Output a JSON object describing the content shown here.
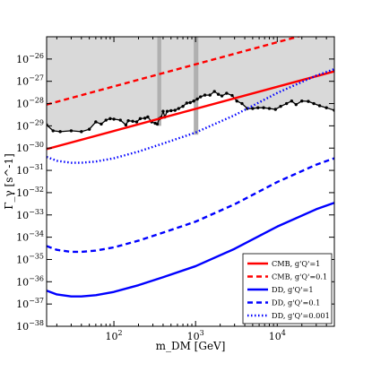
{
  "chart_data": {
    "type": "line",
    "title": "",
    "xlabel": "m_DM [GeV]",
    "ylabel": "Γ_γ [s^-1]",
    "x_scale": "log",
    "y_scale": "log",
    "xlim": [
      15,
      50000
    ],
    "ylim": [
      1e-38,
      1e-25
    ],
    "x_ticks": [
      {
        "value": 100,
        "base": "10",
        "exp": "2"
      },
      {
        "value": 1000,
        "base": "10",
        "exp": "3"
      },
      {
        "value": 10000,
        "base": "10",
        "exp": "4"
      }
    ],
    "y_ticks": [
      {
        "value": 1e-26,
        "base": "10",
        "exp": "−26"
      },
      {
        "value": 1e-27,
        "base": "10",
        "exp": "−27"
      },
      {
        "value": 1e-28,
        "base": "10",
        "exp": "−28"
      },
      {
        "value": 1e-29,
        "base": "10",
        "exp": "−29"
      },
      {
        "value": 1e-30,
        "base": "10",
        "exp": "−30"
      },
      {
        "value": 1e-31,
        "base": "10",
        "exp": "−31"
      },
      {
        "value": 1e-32,
        "base": "10",
        "exp": "−32"
      },
      {
        "value": 1e-33,
        "base": "10",
        "exp": "−33"
      },
      {
        "value": 1e-34,
        "base": "10",
        "exp": "−34"
      },
      {
        "value": 1e-35,
        "base": "10",
        "exp": "−35"
      },
      {
        "value": 1e-36,
        "base": "10",
        "exp": "−36"
      },
      {
        "value": 1e-37,
        "base": "10",
        "exp": "−37"
      },
      {
        "value": 1e-38,
        "base": "10",
        "exp": "−38"
      }
    ],
    "excluded_region": {
      "fill": "#d9d9d9",
      "upper": 1e-25,
      "boundary": [
        [
          15,
          1.1e-29
        ],
        [
          18,
          6e-30
        ],
        [
          22,
          5.5e-30
        ],
        [
          30,
          6e-30
        ],
        [
          40,
          5.5e-30
        ],
        [
          50,
          7e-30
        ],
        [
          60,
          1.5e-29
        ],
        [
          70,
          1.2e-29
        ],
        [
          80,
          1.8e-29
        ],
        [
          90,
          2.1e-29
        ],
        [
          100,
          2e-29
        ],
        [
          120,
          1.8e-29
        ],
        [
          140,
          1.1e-29
        ],
        [
          150,
          1.7e-29
        ],
        [
          170,
          1.6e-29
        ],
        [
          190,
          1.5e-29
        ],
        [
          210,
          2.1e-29
        ],
        [
          240,
          2.2e-29
        ],
        [
          260,
          2.5e-29
        ],
        [
          290,
          1.5e-29
        ],
        [
          320,
          1.3e-29
        ],
        [
          340,
          1.2e-29
        ],
        [
          360,
          2.1e-29
        ],
        [
          380,
          2.4e-29
        ],
        [
          400,
          4.5e-29
        ],
        [
          420,
          2.5e-29
        ],
        [
          450,
          4.5e-29
        ],
        [
          500,
          4.8e-29
        ],
        [
          560,
          5e-29
        ],
        [
          620,
          6e-29
        ],
        [
          700,
          7.5e-29
        ],
        [
          780,
          1.05e-28
        ],
        [
          860,
          1.1e-28
        ],
        [
          950,
          1.3e-28
        ],
        [
          1050,
          1.6e-28
        ],
        [
          1150,
          2e-28
        ],
        [
          1300,
          2.4e-28
        ],
        [
          1500,
          2.4e-28
        ],
        [
          1700,
          3.5e-28
        ],
        [
          1900,
          2.6e-28
        ],
        [
          2100,
          2.2e-28
        ],
        [
          2400,
          2.9e-28
        ],
        [
          2800,
          2.3e-28
        ],
        [
          3200,
          1.3e-28
        ],
        [
          3700,
          1e-28
        ],
        [
          4300,
          6e-29
        ],
        [
          5000,
          6e-29
        ],
        [
          5800,
          6.5e-29
        ],
        [
          6800,
          6.5e-29
        ],
        [
          8000,
          6e-29
        ],
        [
          9500,
          5.5e-29
        ],
        [
          11000,
          7.5e-29
        ],
        [
          13000,
          1e-28
        ],
        [
          15000,
          1.3e-28
        ],
        [
          17000,
          9e-29
        ],
        [
          20000,
          1.3e-28
        ],
        [
          24000,
          1.25e-28
        ],
        [
          28000,
          1e-28
        ],
        [
          33000,
          8e-29
        ],
        [
          40000,
          6.5e-29
        ],
        [
          50000,
          5e-29
        ]
      ],
      "vertical_bands": [
        {
          "x_from": 340,
          "x_to": 380,
          "y_from": 1e-29,
          "fill": "#b0b0b0"
        },
        {
          "x_from": 950,
          "x_to": 1080,
          "y_from": 4e-30,
          "fill": "#b0b0b0"
        }
      ]
    },
    "series": [
      {
        "name": "CMB, g'Q'=1",
        "color": "#ff0000",
        "style": "solid",
        "x": [
          15,
          50000
        ],
        "y": [
          9e-31,
          2.8e-27
        ]
      },
      {
        "name": "CMB, g'Q'=0.1",
        "color": "#ff0000",
        "style": "dashed",
        "x": [
          15,
          50000
        ],
        "y": [
          9e-29,
          2.8e-25
        ]
      },
      {
        "name": "DD, g'Q'=1",
        "color": "#0000ff",
        "style": "solid",
        "x": [
          15,
          20,
          30,
          40,
          60,
          100,
          200,
          400,
          1000,
          3000,
          10000,
          30000,
          50000
        ],
        "y": [
          4e-37,
          2.7e-37,
          2.2e-37,
          2.2e-37,
          2.5e-37,
          3.5e-37,
          7e-37,
          1.6e-36,
          5e-36,
          3e-35,
          3e-34,
          1.8e-33,
          3.5e-33
        ]
      },
      {
        "name": "DD, g'Q'=0.1",
        "color": "#0000ff",
        "style": "dashed",
        "x": [
          15,
          20,
          30,
          40,
          60,
          100,
          200,
          400,
          1000,
          3000,
          10000,
          30000,
          50000
        ],
        "y": [
          4e-35,
          2.7e-35,
          2.2e-35,
          2.2e-35,
          2.5e-35,
          3.5e-35,
          7e-35,
          1.6e-34,
          5e-34,
          3e-33,
          3e-32,
          1.8e-31,
          3.5e-31
        ]
      },
      {
        "name": "DD, g'Q'=0.001",
        "color": "#0000ff",
        "style": "dotted",
        "x": [
          15,
          20,
          30,
          40,
          60,
          100,
          200,
          400,
          1000,
          3000,
          10000,
          30000,
          50000
        ],
        "y": [
          4e-31,
          2.7e-31,
          2.2e-31,
          2.2e-31,
          2.5e-31,
          3.5e-31,
          7e-31,
          1.6e-30,
          5e-30,
          3e-29,
          3e-28,
          1.8e-27,
          3.5e-27
        ]
      }
    ],
    "legend": {
      "placement": "bottom-right",
      "entries": [
        "CMB, g'Q'=1",
        "CMB, g'Q'=0.1",
        "DD, g'Q'=1",
        "DD, g'Q'=0.1",
        "DD, g'Q'=0.001"
      ]
    },
    "grid": false
  }
}
